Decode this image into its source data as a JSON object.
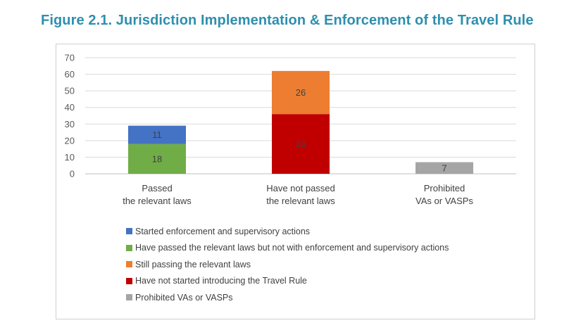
{
  "figure_title": "Figure 2.1. Jurisdiction Implementation & Enforcement of the Travel Rule",
  "chart_data": {
    "type": "bar",
    "stacked": true,
    "categories": [
      [
        "Passed",
        "the relevant laws"
      ],
      [
        "Have not passed",
        "the relevant laws"
      ],
      [
        "Prohibited",
        "VAs or VASPs"
      ]
    ],
    "series": [
      {
        "name": "Have passed the relevant laws but not with enforcement and supervisory actions",
        "color": "#70ad47",
        "values": [
          18,
          0,
          0
        ]
      },
      {
        "name": "Started enforcement and supervisory actions",
        "color": "#4472c4",
        "values": [
          11,
          0,
          0
        ]
      },
      {
        "name": "Have not started introducing the Travel Rule",
        "color": "#c00000",
        "values": [
          0,
          36,
          0
        ]
      },
      {
        "name": "Still passing the relevant laws",
        "color": "#ed7d31",
        "values": [
          0,
          26,
          0
        ]
      },
      {
        "name": "Prohibited VAs or VASPs",
        "color": "#a5a5a5",
        "values": [
          0,
          0,
          7
        ]
      }
    ],
    "ylim": [
      0,
      70
    ],
    "yticks": [
      0,
      10,
      20,
      30,
      40,
      50,
      60,
      70
    ],
    "grid": true,
    "legend_position": "bottom",
    "legend_order": [
      "Started enforcement and supervisory actions",
      "Have passed the relevant laws but not with enforcement and supervisory actions",
      "Still passing the relevant laws",
      "Have not started introducing the Travel Rule",
      "Prohibited VAs or VASPs"
    ]
  }
}
